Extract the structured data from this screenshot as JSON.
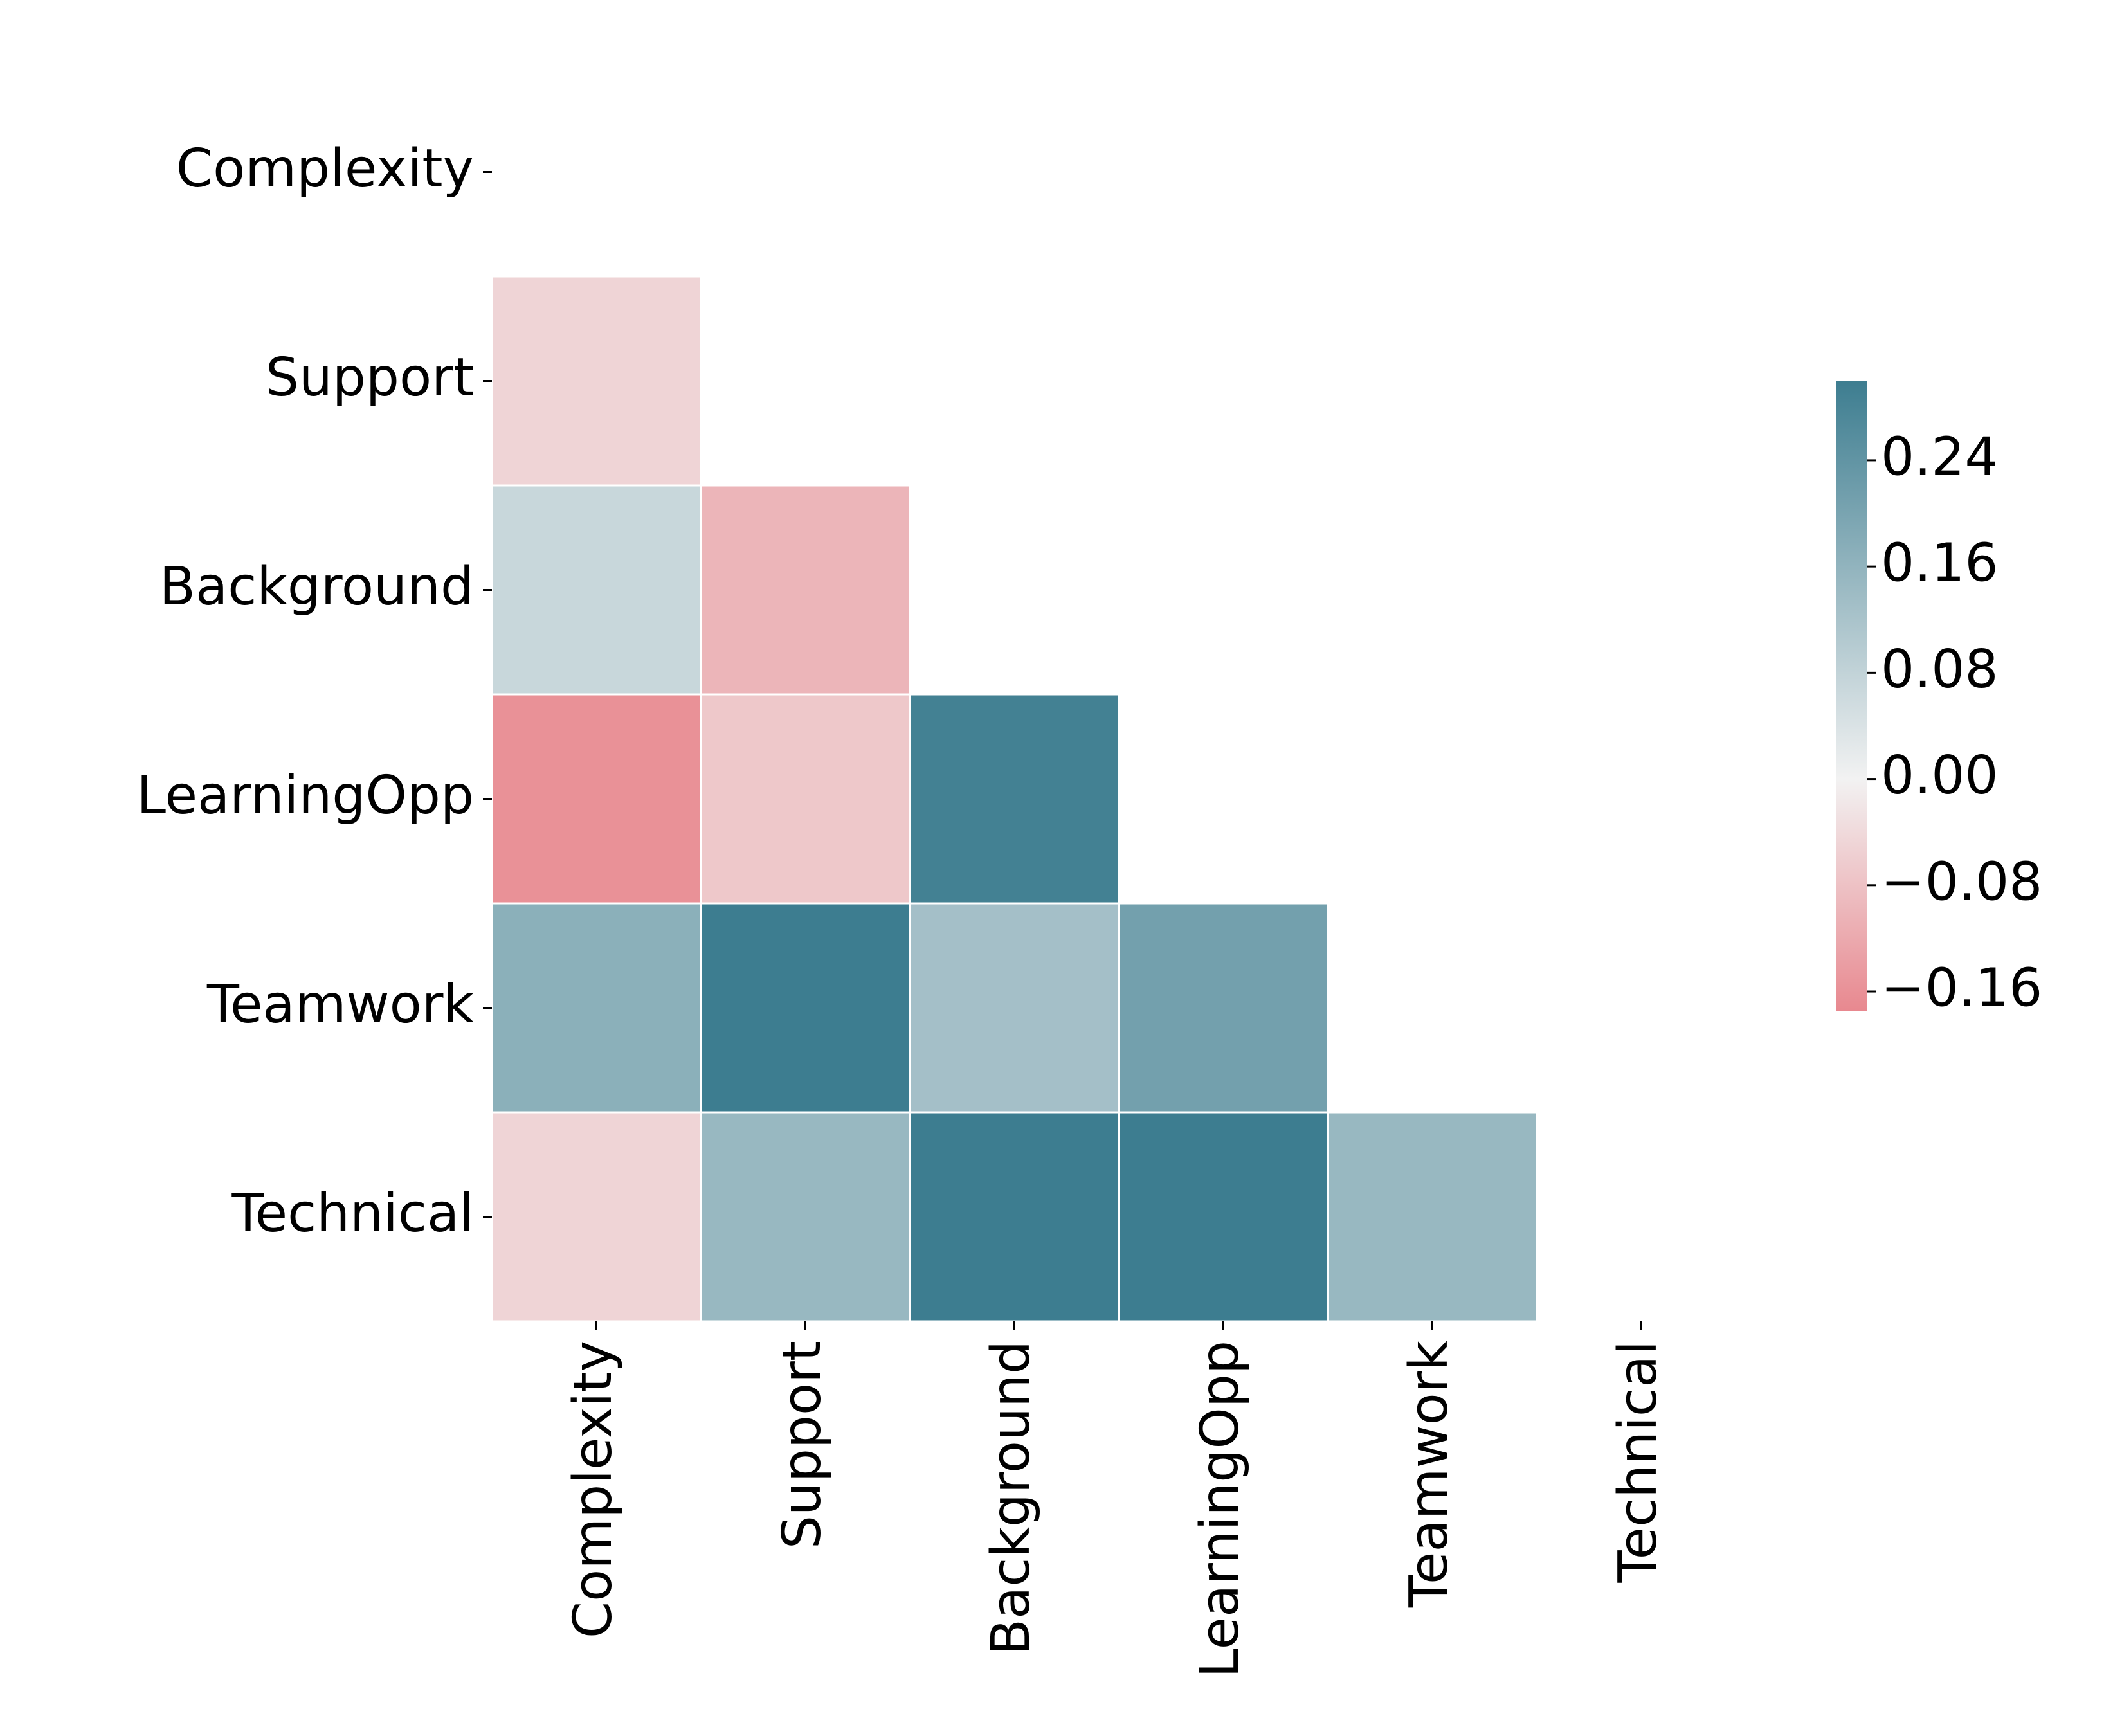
{
  "chart_data": {
    "type": "heatmap",
    "title": "",
    "xlabel": "",
    "ylabel": "",
    "rows": [
      "Complexity",
      "Support",
      "Background",
      "LearningOpp",
      "Teamwork",
      "Technical"
    ],
    "columns": [
      "Complexity",
      "Support",
      "Background",
      "LearningOpp",
      "Teamwork",
      "Technical"
    ],
    "mask": "upper-triangle-including-diagonal",
    "values": [
      [
        null,
        null,
        null,
        null,
        null,
        null
      ],
      [
        -0.05,
        null,
        null,
        null,
        null,
        null
      ],
      [
        0.07,
        -0.1,
        null,
        null,
        null,
        null
      ],
      [
        -0.16,
        -0.07,
        0.29,
        null,
        null,
        null
      ],
      [
        0.17,
        0.3,
        0.13,
        0.21,
        null,
        null
      ],
      [
        -0.05,
        0.15,
        0.3,
        0.3,
        0.15,
        null
      ]
    ],
    "colorbar": {
      "min": -0.175,
      "max": 0.3,
      "ticks": [
        "−0.16",
        "−0.08",
        "0.00",
        "0.08",
        "0.16",
        "0.24"
      ],
      "tick_values": [
        -0.16,
        -0.08,
        0.0,
        0.08,
        0.16,
        0.24
      ],
      "colors": {
        "negative": "#e8888f",
        "center": "#f2f2f2",
        "positive": "#3d7d90"
      }
    }
  }
}
